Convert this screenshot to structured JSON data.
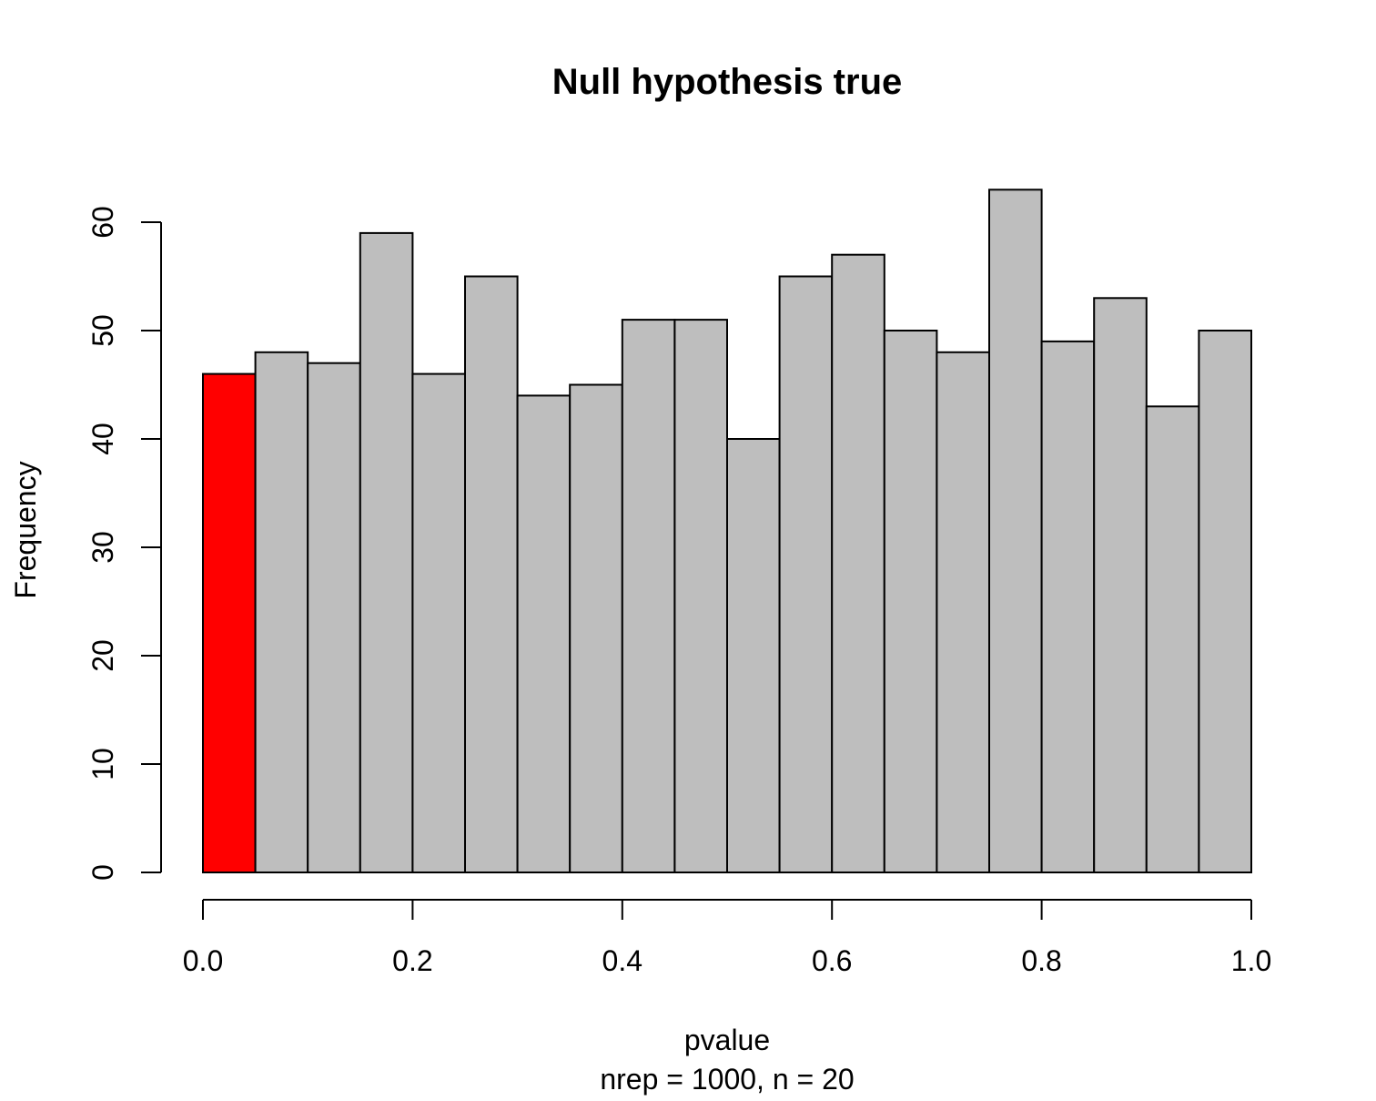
{
  "chart_data": {
    "type": "bar",
    "title": "Null hypothesis true",
    "xlabel": "pvalue",
    "subtitle": "nrep = 1000, n = 20",
    "ylabel": "Frequency",
    "bin_edges": [
      0.0,
      0.05,
      0.1,
      0.15,
      0.2,
      0.25,
      0.3,
      0.35,
      0.4,
      0.45,
      0.5,
      0.55,
      0.6,
      0.65,
      0.7,
      0.75,
      0.8,
      0.85,
      0.9,
      0.95,
      1.0
    ],
    "values": [
      46,
      48,
      47,
      59,
      46,
      55,
      44,
      45,
      51,
      51,
      40,
      55,
      57,
      50,
      48,
      63,
      49,
      53,
      43,
      50
    ],
    "xlim": [
      0,
      1
    ],
    "ylim": [
      0,
      63
    ],
    "x_ticks": [
      "0.0",
      "0.2",
      "0.4",
      "0.6",
      "0.8",
      "1.0"
    ],
    "y_ticks": [
      "0",
      "10",
      "20",
      "30",
      "40",
      "50",
      "60"
    ],
    "grid": false,
    "colors": {
      "highlight": "#ff0000",
      "bar": "#bebebe",
      "outline": "#000000"
    },
    "highlight_bins": [
      0
    ]
  }
}
